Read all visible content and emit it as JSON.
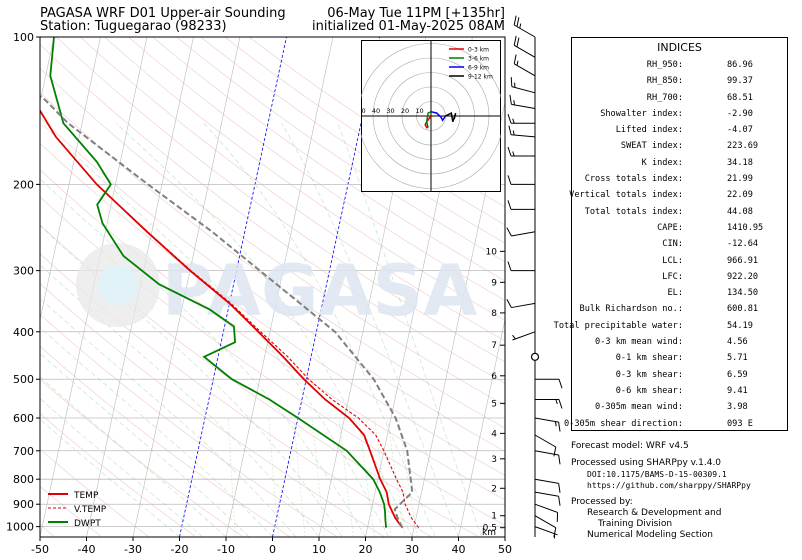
{
  "header": {
    "title_left": "PAGASA WRF D01 Upper-air Sounding",
    "station": "Station: Tuguegarao (98233)",
    "valid_time": "06-May Tue 11PM [+135hr]",
    "init_time": "initialized 01-May-2025 08AM"
  },
  "watermark": "PAGASA",
  "chart_data": {
    "type": "line",
    "subtype": "skew-T log-p sounding",
    "xlim": [
      -50,
      50
    ],
    "ylim": [
      1050,
      100
    ],
    "y_scale": "log",
    "x_ticks": [
      -50,
      -40,
      -30,
      -20,
      -10,
      0,
      10,
      20,
      30,
      40,
      50
    ],
    "y_ticks": [
      100,
      200,
      300,
      400,
      500,
      600,
      700,
      800,
      900,
      1000
    ],
    "km_axis": {
      "labels": [
        "0.5",
        "1",
        "2",
        "3",
        "4",
        "5",
        "6",
        "7",
        "8",
        "9",
        "10"
      ],
      "unit": "km",
      "pressures": [
        1005,
        950,
        835,
        727,
        645,
        560,
        492,
        426,
        366,
        317,
        274
      ]
    },
    "legend": {
      "position": "bottom-left",
      "entries": [
        "TEMP",
        "V.TEMP",
        "DWPT"
      ],
      "colors": [
        "#e00000",
        "#e00000",
        "#008000"
      ]
    },
    "series": [
      {
        "name": "TEMP",
        "color": "#e00000",
        "points": [
          [
            1005,
            27.5
          ],
          [
            960,
            25.5
          ],
          [
            900,
            23.5
          ],
          [
            850,
            22.5
          ],
          [
            800,
            20.5
          ],
          [
            700,
            17
          ],
          [
            650,
            15
          ],
          [
            600,
            11
          ],
          [
            550,
            5
          ],
          [
            500,
            -0.5
          ],
          [
            450,
            -6
          ],
          [
            400,
            -12.5
          ],
          [
            350,
            -20
          ],
          [
            300,
            -30
          ],
          [
            250,
            -41
          ],
          [
            200,
            -54
          ],
          [
            160,
            -65
          ],
          [
            140,
            -70
          ],
          [
            120,
            -74
          ],
          [
            100,
            -76
          ]
        ]
      },
      {
        "name": "V.TEMP",
        "color": "#e00000",
        "dashed": true,
        "points": [
          [
            1005,
            31
          ],
          [
            960,
            29
          ],
          [
            900,
            27
          ],
          [
            850,
            26
          ],
          [
            800,
            24
          ],
          [
            700,
            20
          ],
          [
            650,
            17.5
          ],
          [
            600,
            13
          ],
          [
            550,
            6.5
          ],
          [
            500,
            0.5
          ],
          [
            450,
            -5
          ],
          [
            400,
            -12
          ],
          [
            350,
            -19.7
          ],
          [
            300,
            -29.8
          ],
          [
            250,
            -40.9
          ],
          [
            200,
            -54
          ],
          [
            160,
            -65
          ],
          [
            140,
            -70
          ],
          [
            120,
            -74
          ],
          [
            100,
            -76
          ]
        ]
      },
      {
        "name": "DWPT",
        "color": "#008000",
        "points": [
          [
            1005,
            24
          ],
          [
            970,
            23.5
          ],
          [
            930,
            23
          ],
          [
            900,
            22.5
          ],
          [
            850,
            21
          ],
          [
            800,
            19
          ],
          [
            700,
            12
          ],
          [
            600,
            0
          ],
          [
            550,
            -7
          ],
          [
            500,
            -16
          ],
          [
            450,
            -23
          ],
          [
            420,
            -17
          ],
          [
            390,
            -18
          ],
          [
            360,
            -24
          ],
          [
            320,
            -36
          ],
          [
            280,
            -45
          ],
          [
            240,
            -51
          ],
          [
            220,
            -53
          ],
          [
            200,
            -51
          ],
          [
            180,
            -55
          ],
          [
            150,
            -64
          ],
          [
            120,
            -69
          ],
          [
            100,
            -70
          ]
        ]
      },
      {
        "name": "Parcel",
        "color": "#808080",
        "dashed": true,
        "points": [
          [
            1005,
            27.5
          ],
          [
            960,
            26
          ],
          [
            922,
            25
          ],
          [
            850,
            28
          ],
          [
            700,
            25
          ],
          [
            600,
            21
          ],
          [
            500,
            14.5
          ],
          [
            400,
            4
          ],
          [
            300,
            -15
          ],
          [
            250,
            -27
          ],
          [
            200,
            -43
          ],
          [
            150,
            -63
          ],
          [
            134.5,
            -69
          ],
          [
            120,
            -77
          ],
          [
            100,
            -87
          ]
        ]
      }
    ],
    "wind_barbs": [
      {
        "pressure": 1000,
        "dir": 110,
        "speed": 5
      },
      {
        "pressure": 950,
        "dir": 120,
        "speed": 10
      },
      {
        "pressure": 900,
        "dir": 110,
        "speed": 10
      },
      {
        "pressure": 850,
        "dir": 100,
        "speed": 10
      },
      {
        "pressure": 800,
        "dir": 100,
        "speed": 10
      },
      {
        "pressure": 700,
        "dir": 100,
        "speed": 10
      },
      {
        "pressure": 650,
        "dir": 120,
        "speed": 10
      },
      {
        "pressure": 600,
        "dir": 100,
        "speed": 15
      },
      {
        "pressure": 550,
        "dir": 90,
        "speed": 15
      },
      {
        "pressure": 500,
        "dir": 90,
        "speed": 10
      },
      {
        "pressure": 450,
        "dir": 0,
        "speed": 0
      },
      {
        "pressure": 400,
        "dir": 250,
        "speed": 5
      },
      {
        "pressure": 350,
        "dir": 260,
        "speed": 10
      },
      {
        "pressure": 300,
        "dir": 270,
        "speed": 10
      },
      {
        "pressure": 250,
        "dir": 260,
        "speed": 10
      },
      {
        "pressure": 225,
        "dir": 270,
        "speed": 10
      },
      {
        "pressure": 200,
        "dir": 270,
        "speed": 10
      },
      {
        "pressure": 175,
        "dir": 270,
        "speed": 15
      },
      {
        "pressure": 160,
        "dir": 275,
        "speed": 15
      },
      {
        "pressure": 150,
        "dir": 270,
        "speed": 15
      },
      {
        "pressure": 140,
        "dir": 280,
        "speed": 15
      },
      {
        "pressure": 130,
        "dir": 285,
        "speed": 15
      },
      {
        "pressure": 120,
        "dir": 300,
        "speed": 15
      },
      {
        "pressure": 110,
        "dir": 300,
        "speed": 20
      },
      {
        "pressure": 100,
        "dir": 300,
        "speed": 25
      }
    ],
    "hodograph": {
      "ring_labels": [
        "50",
        "40",
        "30",
        "20",
        "10"
      ],
      "legend": [
        "0-3 km",
        "3-6 km",
        "6-9 km",
        "9-12 km"
      ],
      "colors": [
        "#e00000",
        "#008000",
        "#0000ff",
        "#000000"
      ],
      "segments": [
        {
          "name": "0-3 km",
          "color": "#e00000",
          "points": [
            [
              0,
              0
            ],
            [
              -3,
              -4
            ],
            [
              -4,
              -6
            ],
            [
              -3,
              -8
            ],
            [
              -2,
              -8
            ]
          ]
        },
        {
          "name": "3-6 km",
          "color": "#008000",
          "points": [
            [
              -2,
              -8
            ],
            [
              -3,
              -4
            ],
            [
              -2,
              2
            ],
            [
              0,
              3
            ]
          ]
        },
        {
          "name": "6-9 km",
          "color": "#0000ff",
          "points": [
            [
              0,
              3
            ],
            [
              4,
              2
            ],
            [
              7,
              -1
            ],
            [
              8,
              -3
            ],
            [
              10,
              0
            ]
          ]
        },
        {
          "name": "9-12 km",
          "color": "#000000",
          "points": [
            [
              10,
              0
            ],
            [
              14,
              2
            ],
            [
              15,
              -4
            ],
            [
              17,
              2
            ],
            [
              16,
              -2
            ]
          ]
        }
      ]
    }
  },
  "indices": {
    "title": "INDICES",
    "rows": [
      {
        "key": "RH_950:",
        "val": "86.96"
      },
      {
        "key": "RH_850:",
        "val": "99.37"
      },
      {
        "key": "RH_700:",
        "val": "68.51"
      },
      {
        "key": "Showalter index:",
        "val": "-2.90"
      },
      {
        "key": "Lifted index:",
        "val": "-4.07"
      },
      {
        "key": "SWEAT index:",
        "val": "223.69"
      },
      {
        "key": "K index:",
        "val": "34.18"
      },
      {
        "key": "Cross totals index:",
        "val": "21.99"
      },
      {
        "key": "Vertical totals index:",
        "val": "22.09"
      },
      {
        "key": "Total totals index:",
        "val": "44.08"
      },
      {
        "key": "CAPE:",
        "val": "1410.95"
      },
      {
        "key": "CIN:",
        "val": "-12.64"
      },
      {
        "key": "LCL:",
        "val": "966.91"
      },
      {
        "key": "LFC:",
        "val": "922.20"
      },
      {
        "key": "EL:",
        "val": "134.50"
      },
      {
        "key": "Bulk Richardson no.:",
        "val": "600.81"
      },
      {
        "key": "Total precipitable water:",
        "val": "54.19"
      },
      {
        "key": "0-3 km mean wind:",
        "val": "4.56"
      },
      {
        "key": "0-1 km shear:",
        "val": "5.71"
      },
      {
        "key": "0-3 km shear:",
        "val": "6.59"
      },
      {
        "key": "0-6 km shear:",
        "val": "9.41"
      },
      {
        "key": "0-305m mean wind:",
        "val": "3.98"
      },
      {
        "key": "0-305m shear direction:",
        "val": "093 E"
      }
    ]
  },
  "footer": {
    "model": "Forecast model: WRF v4.5",
    "processed_with": "Processed using SHARPpy v.1.4.0",
    "doi": "DOI:10.1175/BAMS-D-15-00309.1",
    "url": "https://github.com/sharppy/SHARPpy",
    "processed_by": "Processed by:",
    "division1": "Research & Development and",
    "division2": "Training Division",
    "section": "Numerical Modeling Section"
  }
}
